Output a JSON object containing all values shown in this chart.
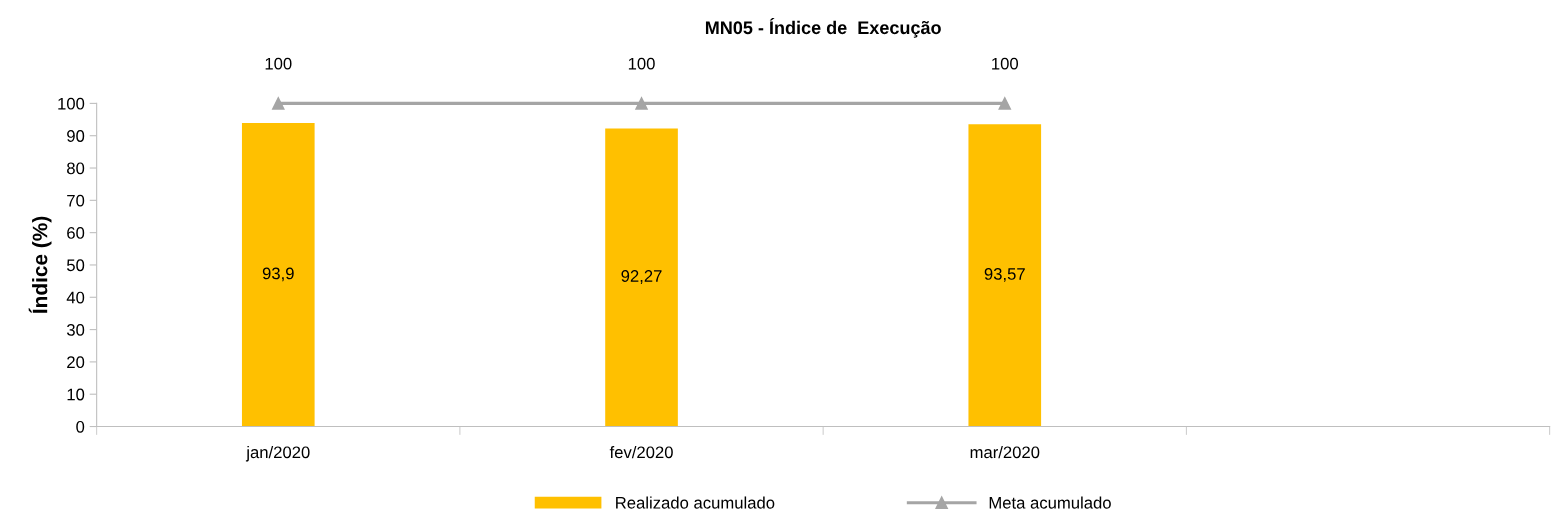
{
  "chart_data": {
    "type": "bar",
    "title": "MN05 - Índice de  Execução",
    "ylabel": "Índice (%)",
    "categories": [
      "jan/2020",
      "fev/2020",
      "mar/2020",
      null
    ],
    "series": [
      {
        "name": "Realizado acumulado",
        "color": "#ffc000",
        "values": [
          93.9,
          92.27,
          93.57,
          null
        ],
        "value_labels": [
          "93,9",
          "92,27",
          "93,57",
          null
        ]
      },
      {
        "name": "Meta acumulado",
        "type": "line",
        "color": "#a5a5a5",
        "marker": "triangle",
        "values": [
          100,
          100,
          100,
          null
        ],
        "value_labels": [
          "100",
          "100",
          "100",
          null
        ]
      }
    ],
    "ylim": [
      0,
      100
    ],
    "yticks": [
      0,
      10,
      20,
      30,
      40,
      50,
      60,
      70,
      80,
      90,
      100
    ],
    "grid": false,
    "legend": "bottom"
  }
}
